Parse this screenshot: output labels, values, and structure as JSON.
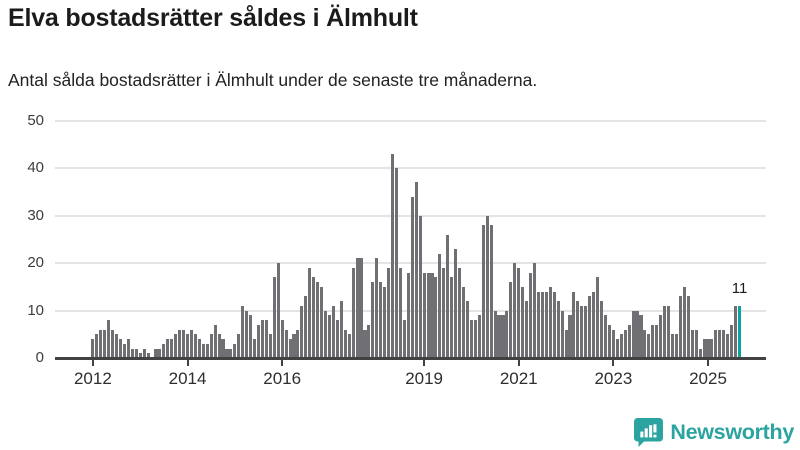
{
  "header": {
    "title": "Elva bostadsrätter såldes i Älmhult",
    "subtitle": "Antal sålda bostadsrätter i Älmhult under de senaste tre månaderna."
  },
  "branding": {
    "name": "Newsworthy",
    "icon": "bar-chart-speech-bubble-icon"
  },
  "colors": {
    "bar": "#6f6f74",
    "highlight": "#0fa3a0",
    "grid": "#e4e4e4",
    "axis": "#424242",
    "logo": "#2ba3a0",
    "title_text": "#1b1b1b"
  },
  "chart_data": {
    "type": "bar",
    "title": "Elva bostadsrätter såldes i Älmhult",
    "subtitle": "Antal sålda bostadsrätter i Älmhult under de senaste tre månaderna.",
    "unit": "sålda bostadsrätter per 3 månader",
    "x_start": "2012-01",
    "x_end": "2025-09",
    "values": [
      4,
      5,
      6,
      6,
      8,
      6,
      5,
      4,
      3,
      4,
      2,
      2,
      1,
      2,
      1,
      0,
      2,
      2,
      3,
      4,
      4,
      5,
      6,
      6,
      5,
      6,
      5,
      4,
      3,
      3,
      5,
      7,
      5,
      4,
      2,
      2,
      3,
      5,
      11,
      10,
      9,
      4,
      7,
      8,
      8,
      5,
      17,
      20,
      8,
      6,
      4,
      5,
      6,
      11,
      13,
      19,
      17,
      16,
      15,
      10,
      9,
      11,
      8,
      12,
      6,
      5,
      19,
      21,
      21,
      6,
      7,
      16,
      21,
      16,
      15,
      19,
      43,
      40,
      19,
      8,
      18,
      34,
      37,
      30,
      18,
      18,
      18,
      17,
      22,
      19,
      26,
      17,
      23,
      19,
      15,
      12,
      8,
      8,
      9,
      28,
      30,
      28,
      10,
      9,
      9,
      10,
      16,
      20,
      19,
      15,
      12,
      18,
      20,
      14,
      14,
      14,
      15,
      14,
      12,
      10,
      6,
      9,
      14,
      12,
      11,
      11,
      13,
      14,
      17,
      12,
      9,
      7,
      6,
      4,
      5,
      6,
      7,
      10,
      10,
      9,
      6,
      5,
      7,
      7,
      9,
      11,
      11,
      5,
      5,
      13,
      15,
      13,
      6,
      6,
      2,
      4,
      4,
      4,
      6,
      6,
      6,
      5,
      7,
      11,
      11
    ],
    "highlight_last": true,
    "last_value_label": "11",
    "ylim": [
      0,
      50
    ],
    "yticks": [
      0,
      10,
      20,
      30,
      40,
      50
    ],
    "xticks": [
      {
        "label": "2012",
        "month_index": 0
      },
      {
        "label": "2014",
        "month_index": 24
      },
      {
        "label": "2016",
        "month_index": 48
      },
      {
        "label": "2019",
        "month_index": 84
      },
      {
        "label": "2021",
        "month_index": 108
      },
      {
        "label": "2023",
        "month_index": 132
      },
      {
        "label": "2025",
        "month_index": 156
      }
    ],
    "grid": true,
    "legend": false
  }
}
